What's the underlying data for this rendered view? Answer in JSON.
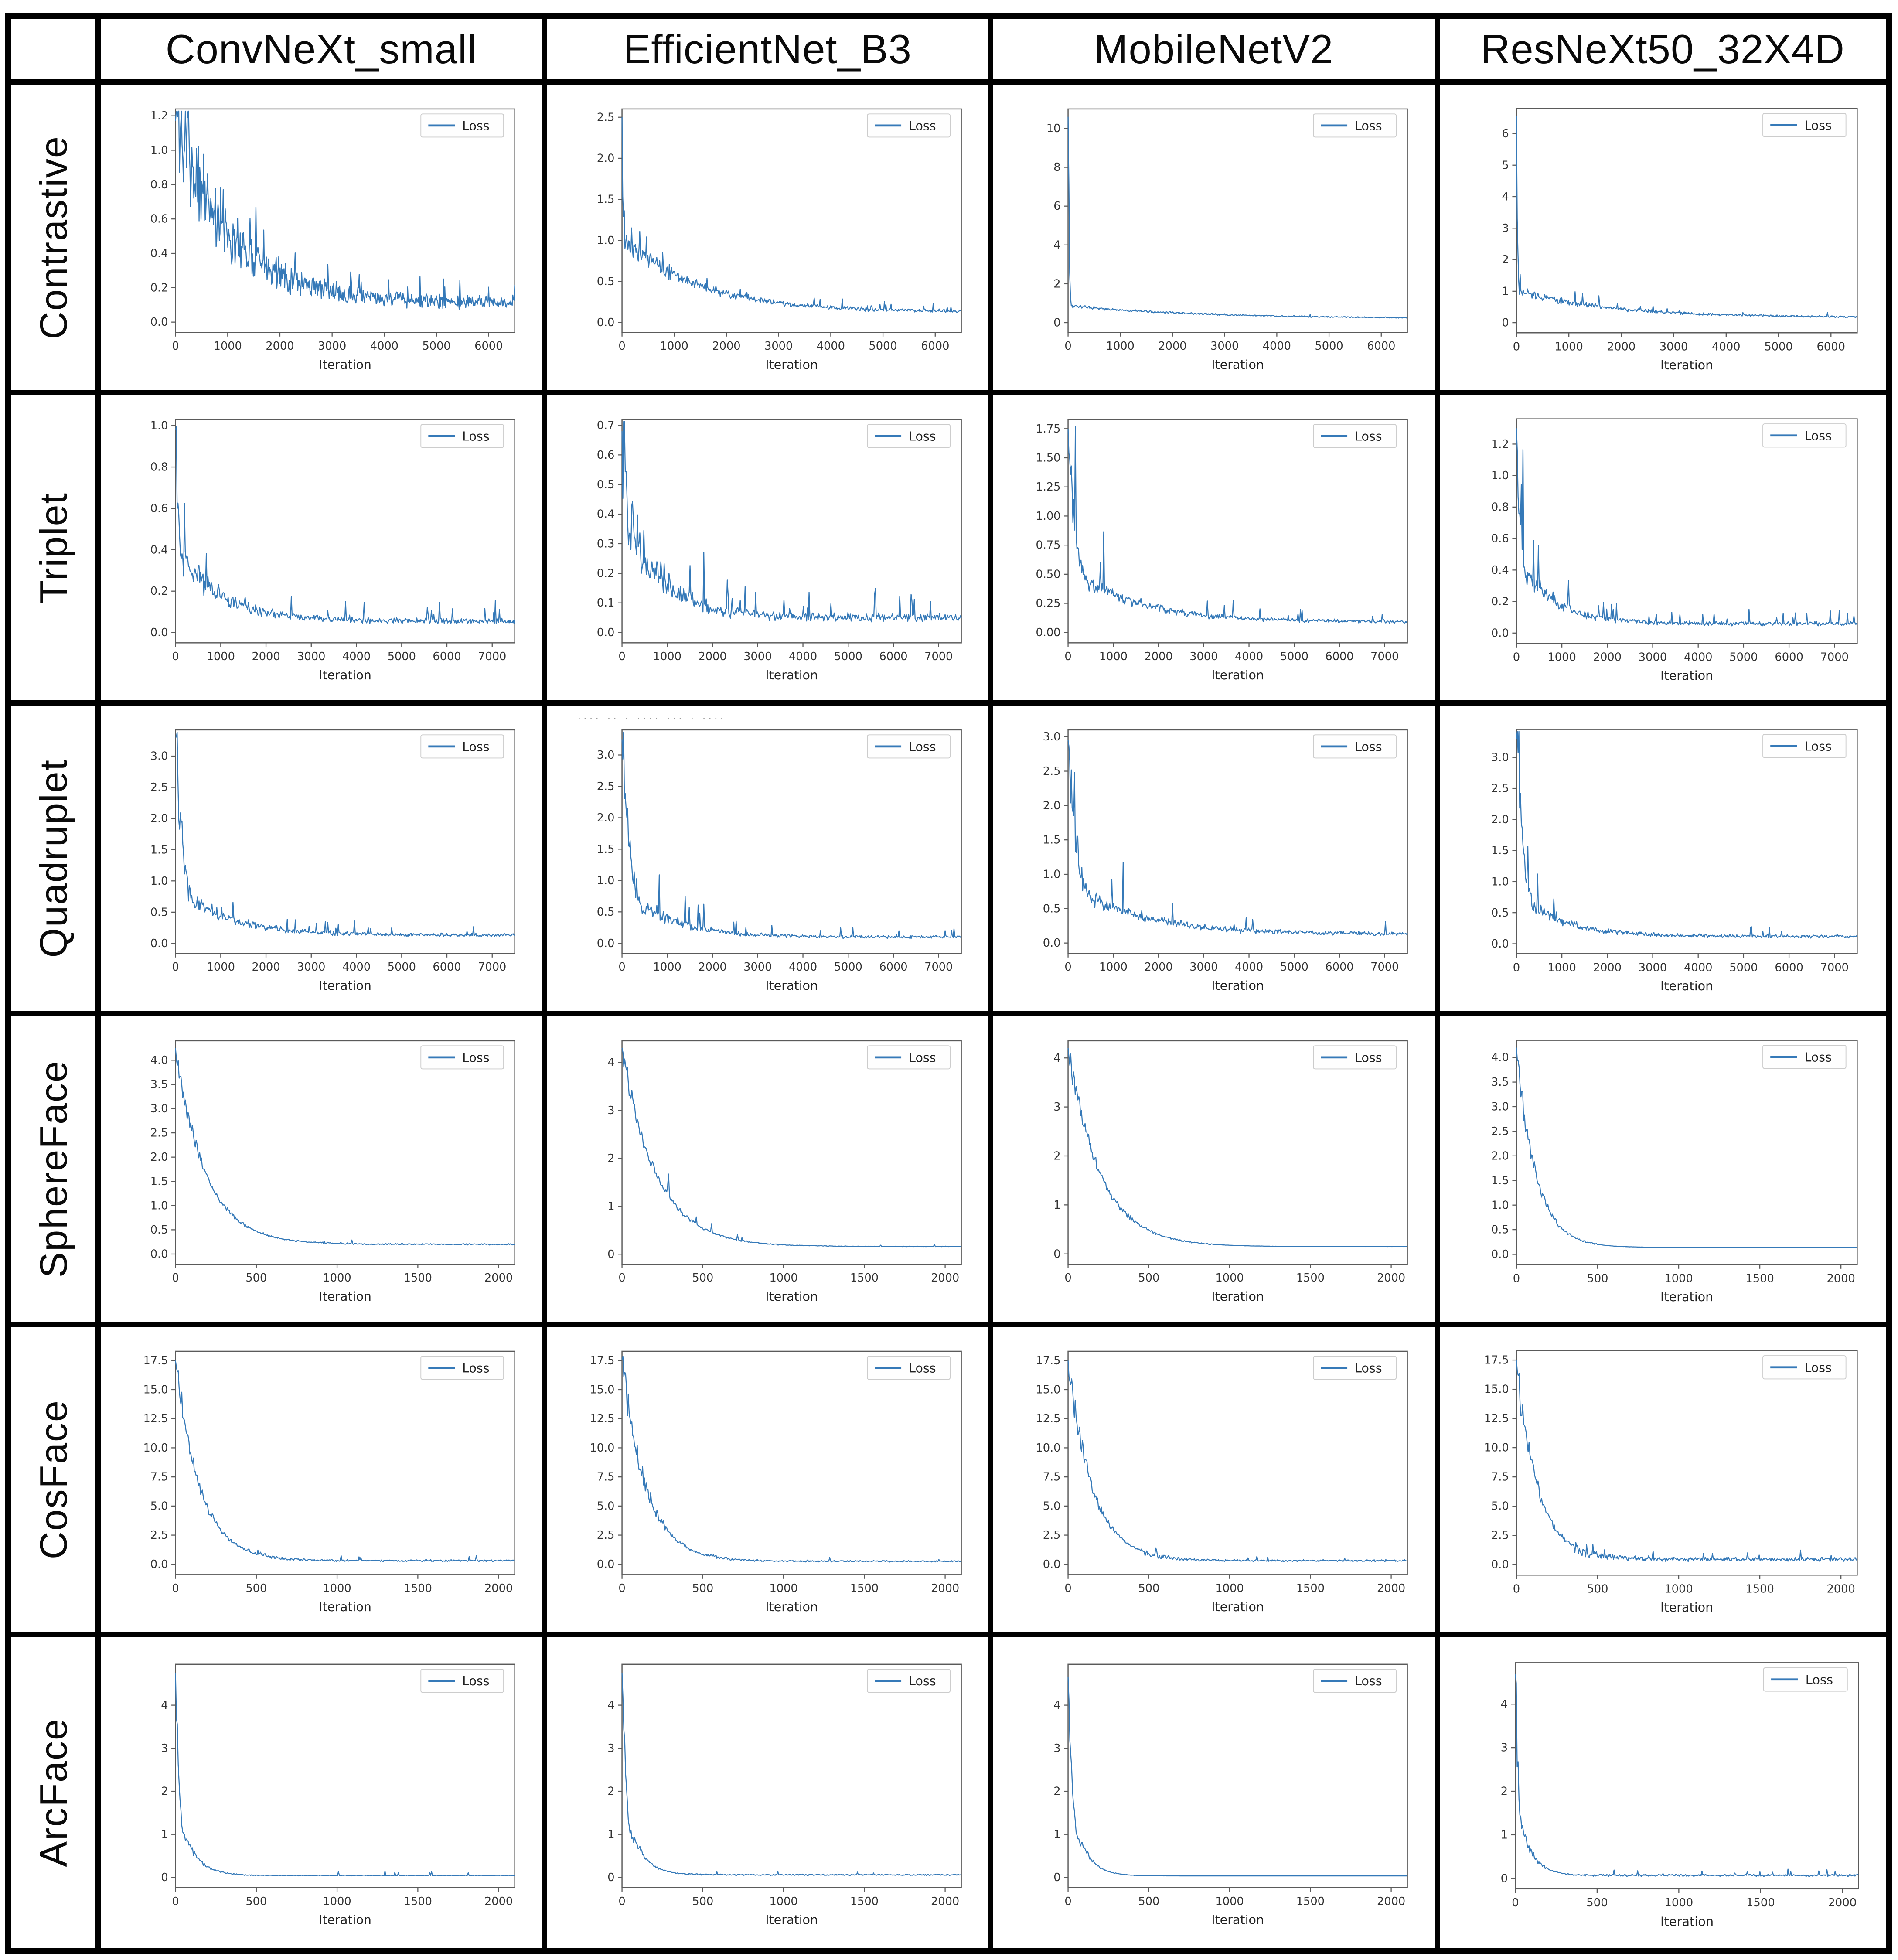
{
  "columns": [
    "ConvNeXt_small",
    "EfficientNet_B3",
    "MobileNetV2",
    "ResNeXt50_32X4D"
  ],
  "rows": [
    "Contrastive",
    "Triplet",
    "Quadruplet",
    "SphereFace",
    "CosFace",
    "ArcFace"
  ],
  "accent_color": "#3579b8",
  "artifacts": {
    "corner_dot_color": "#2e7d32",
    "stray_marks_text": "···· ·· · ···· ··· · ····"
  },
  "chart_data": [
    {
      "row": "Contrastive",
      "col": "ConvNeXt_small",
      "type": "line",
      "legend": "Loss",
      "xlabel": "Iteration",
      "x_max": 6500,
      "x_ticks": [
        "0",
        "1000",
        "2000",
        "3000",
        "4000",
        "5000",
        "6000"
      ],
      "y_ticks": [
        "0.0",
        "0.2",
        "0.4",
        "0.6",
        "0.8",
        "1.0",
        "1.2"
      ],
      "ylim": [
        -0.06,
        1.24
      ],
      "params": {
        "v0": 1.17,
        "knee_x": 0,
        "tau": 1100,
        "v_end": 0.11,
        "noise": 0.38,
        "spike_p": 0.06,
        "spike_h": 0.7,
        "seed": 11,
        "n": 520
      }
    },
    {
      "row": "Contrastive",
      "col": "EfficientNet_B3",
      "type": "line",
      "legend": "Loss",
      "xlabel": "Iteration",
      "x_max": 6500,
      "x_ticks": [
        "0",
        "1000",
        "2000",
        "3000",
        "4000",
        "5000",
        "6000"
      ],
      "y_ticks": [
        "0.0",
        "0.5",
        "1.0",
        "1.5",
        "2.0",
        "2.5"
      ],
      "ylim": [
        -0.12,
        2.6
      ],
      "params": {
        "v0": 2.5,
        "knee_x": 60,
        "v_knee": 1.02,
        "tau": 1400,
        "v_end": 0.13,
        "noise": 0.17,
        "spike_p": 0.04,
        "spike_h": 0.4,
        "seed": 22,
        "n": 460
      }
    },
    {
      "row": "Contrastive",
      "col": "MobileNetV2",
      "type": "line",
      "legend": "Loss",
      "xlabel": "Iteration",
      "x_max": 6500,
      "x_ticks": [
        "0",
        "1000",
        "2000",
        "3000",
        "4000",
        "5000",
        "6000"
      ],
      "y_ticks": [
        "0",
        "2",
        "4",
        "6",
        "8",
        "10"
      ],
      "ylim": [
        -0.5,
        11.0
      ],
      "params": {
        "v0": 10.6,
        "knee_x": 70,
        "v_knee": 0.85,
        "tau": 2600,
        "v_end": 0.2,
        "noise": 0.13,
        "spike_p": 0.02,
        "spike_h": 0.3,
        "seed": 33,
        "n": 420
      }
    },
    {
      "row": "Contrastive",
      "col": "ResNeXt50_32X4D",
      "type": "line",
      "legend": "Loss",
      "xlabel": "Iteration",
      "x_max": 6500,
      "x_ticks": [
        "0",
        "1000",
        "2000",
        "3000",
        "4000",
        "5000",
        "6000"
      ],
      "y_ticks": [
        "0",
        "1",
        "2",
        "3",
        "4",
        "5",
        "6"
      ],
      "ylim": [
        -0.32,
        6.8
      ],
      "params": {
        "v0": 6.55,
        "knee_x": 70,
        "v_knee": 1.0,
        "tau": 1700,
        "v_end": 0.17,
        "noise": 0.18,
        "spike_p": 0.03,
        "spike_h": 0.45,
        "seed": 44,
        "n": 460
      }
    },
    {
      "row": "Triplet",
      "col": "ConvNeXt_small",
      "type": "line",
      "legend": "Loss",
      "xlabel": "Iteration",
      "x_max": 7500,
      "x_ticks": [
        "0",
        "1000",
        "2000",
        "3000",
        "4000",
        "5000",
        "6000",
        "7000"
      ],
      "y_ticks": [
        "0.0",
        "0.2",
        "0.4",
        "0.6",
        "0.8",
        "1.0"
      ],
      "ylim": [
        -0.05,
        1.03
      ],
      "params": {
        "v0": 0.98,
        "knee_x": 260,
        "v_knee": 0.33,
        "tau": 950,
        "v_end": 0.055,
        "noise": 0.28,
        "spike_p": 0.05,
        "spike_h": 1.1,
        "seed": 55,
        "n": 420
      }
    },
    {
      "row": "Triplet",
      "col": "EfficientNet_B3",
      "type": "line",
      "legend": "Loss",
      "xlabel": "Iteration",
      "x_max": 7500,
      "x_ticks": [
        "0",
        "1000",
        "2000",
        "3000",
        "4000",
        "5000",
        "6000",
        "7000"
      ],
      "y_ticks": [
        "0.0",
        "0.1",
        "0.2",
        "0.3",
        "0.4",
        "0.5",
        "0.6",
        "0.7"
      ],
      "ylim": [
        -0.035,
        0.72
      ],
      "params": {
        "v0": 0.68,
        "knee_x": 220,
        "v_knee": 0.36,
        "tau": 800,
        "v_end": 0.05,
        "noise": 0.33,
        "spike_p": 0.05,
        "spike_h": 1.3,
        "seed": 66,
        "n": 420
      }
    },
    {
      "row": "Triplet",
      "col": "MobileNetV2",
      "type": "line",
      "legend": "Loss",
      "xlabel": "Iteration",
      "x_max": 7500,
      "x_ticks": [
        "0",
        "1000",
        "2000",
        "3000",
        "4000",
        "5000",
        "6000",
        "7000"
      ],
      "y_ticks": [
        "0.00",
        "0.25",
        "0.50",
        "0.75",
        "1.00",
        "1.25",
        "1.50",
        "1.75"
      ],
      "ylim": [
        -0.09,
        1.83
      ],
      "params": {
        "v0": 1.75,
        "knee_x": 560,
        "v_knee": 0.42,
        "tau": 1400,
        "v_end": 0.09,
        "noise": 0.2,
        "spike_p": 0.03,
        "spike_h": 1.0,
        "seed": 77,
        "n": 420
      }
    },
    {
      "row": "Triplet",
      "col": "ResNeXt50_32X4D",
      "type": "line",
      "legend": "Loss",
      "xlabel": "Iteration",
      "x_max": 7500,
      "x_ticks": [
        "0",
        "1000",
        "2000",
        "3000",
        "4000",
        "5000",
        "6000",
        "7000"
      ],
      "y_ticks": [
        "0.0",
        "0.2",
        "0.4",
        "0.6",
        "0.8",
        "1.0",
        "1.2"
      ],
      "ylim": [
        -0.065,
        1.36
      ],
      "params": {
        "v0": 1.3,
        "knee_x": 280,
        "v_knee": 0.36,
        "tau": 750,
        "v_end": 0.06,
        "noise": 0.27,
        "spike_p": 0.045,
        "spike_h": 1.0,
        "seed": 88,
        "n": 420
      }
    },
    {
      "row": "Quadruplet",
      "col": "ConvNeXt_small",
      "type": "line",
      "legend": "Loss",
      "xlabel": "Iteration",
      "x_max": 7500,
      "x_ticks": [
        "0",
        "1000",
        "2000",
        "3000",
        "4000",
        "5000",
        "6000",
        "7000"
      ],
      "y_ticks": [
        "0.0",
        "0.5",
        "1.0",
        "1.5",
        "2.0",
        "2.5",
        "3.0"
      ],
      "ylim": [
        -0.16,
        3.42
      ],
      "params": {
        "v0": 3.3,
        "knee_x": 520,
        "v_knee": 0.62,
        "tau": 1100,
        "v_end": 0.13,
        "noise": 0.26,
        "spike_p": 0.035,
        "spike_h": 1.0,
        "seed": 99,
        "n": 420
      }
    },
    {
      "row": "Quadruplet",
      "col": "EfficientNet_B3",
      "type": "line",
      "legend": "Loss",
      "xlabel": "Iteration",
      "x_max": 7500,
      "x_ticks": [
        "0",
        "1000",
        "2000",
        "3000",
        "4000",
        "5000",
        "6000",
        "7000"
      ],
      "y_ticks": [
        "0.0",
        "0.5",
        "1.0",
        "1.5",
        "2.0",
        "2.5",
        "3.0"
      ],
      "ylim": [
        -0.16,
        3.4
      ],
      "artifact_text": "···· ·· · ···· ··· · ····",
      "params": {
        "v0": 3.25,
        "knee_x": 600,
        "v_knee": 0.55,
        "tau": 950,
        "v_end": 0.1,
        "noise": 0.28,
        "spike_p": 0.04,
        "spike_h": 1.2,
        "seed": 111,
        "n": 420
      }
    },
    {
      "row": "Quadruplet",
      "col": "MobileNetV2",
      "type": "line",
      "legend": "Loss",
      "xlabel": "Iteration",
      "x_max": 7500,
      "x_ticks": [
        "0",
        "1000",
        "2000",
        "3000",
        "4000",
        "5000",
        "6000",
        "7000"
      ],
      "y_ticks": [
        "0.0",
        "0.5",
        "1.0",
        "1.5",
        "2.0",
        "2.5",
        "3.0"
      ],
      "ylim": [
        -0.15,
        3.1
      ],
      "params": {
        "v0": 2.95,
        "knee_x": 620,
        "v_knee": 0.62,
        "tau": 1500,
        "v_end": 0.13,
        "noise": 0.24,
        "spike_p": 0.035,
        "spike_h": 0.9,
        "seed": 122,
        "n": 420
      }
    },
    {
      "row": "Quadruplet",
      "col": "ResNeXt50_32X4D",
      "type": "line",
      "legend": "Loss",
      "xlabel": "Iteration",
      "x_max": 7500,
      "x_ticks": [
        "0",
        "1000",
        "2000",
        "3000",
        "4000",
        "5000",
        "6000",
        "7000"
      ],
      "y_ticks": [
        "0.0",
        "0.5",
        "1.0",
        "1.5",
        "2.0",
        "2.5",
        "3.0"
      ],
      "ylim": [
        -0.16,
        3.45
      ],
      "params": {
        "v0": 3.3,
        "knee_x": 520,
        "v_knee": 0.55,
        "tau": 900,
        "v_end": 0.12,
        "noise": 0.26,
        "spike_p": 0.03,
        "spike_h": 1.1,
        "seed": 133,
        "n": 420
      }
    },
    {
      "row": "SphereFace",
      "col": "ConvNeXt_small",
      "type": "line",
      "legend": "Loss",
      "xlabel": "Iteration",
      "x_max": 2100,
      "x_ticks": [
        "0",
        "500",
        "1000",
        "1500",
        "2000"
      ],
      "y_ticks": [
        "0.0",
        "0.5",
        "1.0",
        "1.5",
        "2.0",
        "2.5",
        "3.0",
        "3.5",
        "4.0"
      ],
      "ylim": [
        -0.21,
        4.4
      ],
      "params": {
        "v0": 4.25,
        "knee_x": 0,
        "tau": 185,
        "v_end": 0.2,
        "noise": 0.07,
        "tail_x": 900,
        "tail_noise": 0.09,
        "spike_p": 0.02,
        "spike_h": 0.35,
        "spike_from": 900,
        "seed": 144,
        "n": 380
      }
    },
    {
      "row": "SphereFace",
      "col": "EfficientNet_B3",
      "type": "line",
      "legend": "Loss",
      "xlabel": "Iteration",
      "x_max": 2100,
      "x_ticks": [
        "0",
        "500",
        "1000",
        "1500",
        "2000"
      ],
      "y_ticks": [
        "0",
        "1",
        "2",
        "3",
        "4"
      ],
      "ylim": [
        -0.21,
        4.45
      ],
      "params": {
        "v0": 4.3,
        "knee_x": 0,
        "tau": 210,
        "v_end": 0.16,
        "noise": 0.07,
        "tail_x": 1000,
        "tail_noise": 0.04,
        "spike_p": 0.012,
        "spike_h": 0.3,
        "seed": 155,
        "n": 380
      }
    },
    {
      "row": "SphereFace",
      "col": "MobileNetV2",
      "type": "line",
      "legend": "Loss",
      "xlabel": "Iteration",
      "x_max": 2100,
      "x_ticks": [
        "0",
        "500",
        "1000",
        "1500",
        "2000"
      ],
      "y_ticks": [
        "0",
        "1",
        "2",
        "3",
        "4"
      ],
      "ylim": [
        -0.21,
        4.35
      ],
      "params": {
        "v0": 4.2,
        "knee_x": 0,
        "tau": 200,
        "v_end": 0.15,
        "noise": 0.08,
        "tail_x": 900,
        "tail_noise": 0.012,
        "spike_p": 0,
        "spike_h": 0,
        "seed": 166,
        "n": 380
      }
    },
    {
      "row": "SphereFace",
      "col": "ResNeXt50_32X4D",
      "type": "line",
      "legend": "Loss",
      "xlabel": "Iteration",
      "x_max": 2100,
      "x_ticks": [
        "0",
        "500",
        "1000",
        "1500",
        "2000"
      ],
      "y_ticks": [
        "0.0",
        "0.5",
        "1.0",
        "1.5",
        "2.0",
        "2.5",
        "3.0",
        "3.5",
        "4.0"
      ],
      "ylim": [
        -0.21,
        4.35
      ],
      "params": {
        "v0": 4.2,
        "knee_x": 0,
        "tau": 120,
        "v_end": 0.14,
        "noise": 0.09,
        "tail_x": 500,
        "tail_noise": 0.01,
        "spike_p": 0,
        "spike_h": 0,
        "seed": 177,
        "n": 380
      }
    },
    {
      "row": "CosFace",
      "col": "ConvNeXt_small",
      "type": "line",
      "legend": "Loss",
      "xlabel": "Iteration",
      "x_max": 2100,
      "x_ticks": [
        "0",
        "500",
        "1000",
        "1500",
        "2000"
      ],
      "y_ticks": [
        "0.0",
        "2.5",
        "5.0",
        "7.5",
        "10.0",
        "12.5",
        "15.0",
        "17.5"
      ],
      "ylim": [
        -0.9,
        18.3
      ],
      "params": {
        "v0": 17.5,
        "knee_x": 0,
        "tau": 150,
        "v_end": 0.3,
        "noise": 0.1,
        "tail_x": 450,
        "tail_noise": 0.3,
        "spike_p": 0.03,
        "spike_h": 0.8,
        "spike_from": 450,
        "seed": 188,
        "n": 380
      }
    },
    {
      "row": "CosFace",
      "col": "EfficientNet_B3",
      "type": "line",
      "legend": "Loss",
      "xlabel": "Iteration",
      "x_max": 2100,
      "x_ticks": [
        "0",
        "500",
        "1000",
        "1500",
        "2000"
      ],
      "y_ticks": [
        "0.0",
        "2.5",
        "5.0",
        "7.5",
        "10.0",
        "12.5",
        "15.0",
        "17.5"
      ],
      "ylim": [
        -0.9,
        18.3
      ],
      "params": {
        "v0": 17.6,
        "knee_x": 0,
        "tau": 150,
        "v_end": 0.25,
        "noise": 0.12,
        "tail_x": 500,
        "tail_noise": 0.3,
        "spike_p": 0.02,
        "spike_h": 0.7,
        "spike_from": 500,
        "seed": 199,
        "n": 380
      }
    },
    {
      "row": "CosFace",
      "col": "MobileNetV2",
      "type": "line",
      "legend": "Loss",
      "xlabel": "Iteration",
      "x_max": 2100,
      "x_ticks": [
        "0",
        "500",
        "1000",
        "1500",
        "2000"
      ],
      "y_ticks": [
        "0.0",
        "2.5",
        "5.0",
        "7.5",
        "10.0",
        "12.5",
        "15.0",
        "17.5"
      ],
      "ylim": [
        -0.9,
        18.3
      ],
      "params": {
        "v0": 17.5,
        "knee_x": 0,
        "tau": 150,
        "v_end": 0.3,
        "noise": 0.1,
        "tail_x": 450,
        "tail_noise": 0.35,
        "spike_p": 0.03,
        "spike_h": 0.8,
        "spike_from": 450,
        "seed": 211,
        "n": 380
      }
    },
    {
      "row": "CosFace",
      "col": "ResNeXt50_32X4D",
      "type": "line",
      "legend": "Loss",
      "xlabel": "Iteration",
      "x_max": 2100,
      "x_ticks": [
        "0",
        "500",
        "1000",
        "1500",
        "2000"
      ],
      "y_ticks": [
        "0.0",
        "2.5",
        "5.0",
        "7.5",
        "10.0",
        "12.5",
        "15.0",
        "17.5"
      ],
      "ylim": [
        -0.9,
        18.3
      ],
      "params": {
        "v0": 17.5,
        "knee_x": 0,
        "tau": 130,
        "v_end": 0.45,
        "noise": 0.12,
        "tail_x": 350,
        "tail_noise": 0.5,
        "spike_p": 0.05,
        "spike_h": 0.8,
        "spike_from": 350,
        "seed": 222,
        "n": 380
      }
    },
    {
      "row": "ArcFace",
      "col": "ConvNeXt_small",
      "type": "line",
      "legend": "Loss",
      "xlabel": "Iteration",
      "x_max": 2100,
      "x_ticks": [
        "0",
        "500",
        "1000",
        "1500",
        "2000"
      ],
      "y_ticks": [
        "0",
        "1",
        "2",
        "3",
        "4"
      ],
      "ylim": [
        -0.24,
        4.95
      ],
      "params": {
        "v0": 4.75,
        "knee_x": 75,
        "v_knee": 0.85,
        "tau": 90,
        "v_end": 0.045,
        "noise": 0.15,
        "tail_x": 350,
        "tail_noise": 0.25,
        "spike_p": 0.03,
        "spike_h": 1.6,
        "spike_from": 950,
        "spike_to": 1850,
        "seed": 233,
        "n": 380
      }
    },
    {
      "row": "ArcFace",
      "col": "EfficientNet_B3",
      "type": "line",
      "legend": "Loss",
      "xlabel": "Iteration",
      "x_max": 2100,
      "x_ticks": [
        "0",
        "500",
        "1000",
        "1500",
        "2000"
      ],
      "y_ticks": [
        "0",
        "1",
        "2",
        "3",
        "4"
      ],
      "ylim": [
        -0.24,
        4.95
      ],
      "params": {
        "v0": 4.75,
        "knee_x": 80,
        "v_knee": 0.9,
        "tau": 85,
        "v_end": 0.06,
        "noise": 0.15,
        "tail_x": 350,
        "tail_noise": 0.3,
        "spike_p": 0.02,
        "spike_h": 1.3,
        "spike_from": 400,
        "seed": 244,
        "n": 380
      }
    },
    {
      "row": "ArcFace",
      "col": "MobileNetV2",
      "type": "line",
      "legend": "Loss",
      "xlabel": "Iteration",
      "x_max": 2100,
      "x_ticks": [
        "0",
        "500",
        "1000",
        "1500",
        "2000"
      ],
      "y_ticks": [
        "0",
        "1",
        "2",
        "3",
        "4"
      ],
      "ylim": [
        -0.24,
        4.95
      ],
      "params": {
        "v0": 4.65,
        "knee_x": 90,
        "v_knee": 0.8,
        "tau": 80,
        "v_end": 0.035,
        "noise": 0.12,
        "tail_x": 420,
        "tail_noise": 0.008,
        "spike_p": 0,
        "spike_h": 0,
        "seed": 255,
        "n": 380
      }
    },
    {
      "row": "ArcFace",
      "col": "ResNeXt50_32X4D",
      "type": "line",
      "legend": "Loss",
      "xlabel": "Iteration",
      "x_max": 2100,
      "x_ticks": [
        "0",
        "500",
        "1000",
        "1500",
        "2000"
      ],
      "y_ticks": [
        "0",
        "1",
        "2",
        "3",
        "4"
      ],
      "ylim": [
        -0.24,
        4.95
      ],
      "params": {
        "v0": 4.7,
        "knee_x": 70,
        "v_knee": 0.9,
        "tau": 75,
        "v_end": 0.07,
        "noise": 0.2,
        "tail_x": 400,
        "tail_noise": 0.45,
        "spike_p": 0.04,
        "spike_h": 1.2,
        "spike_from": 420,
        "seed": 266,
        "n": 380
      }
    }
  ]
}
